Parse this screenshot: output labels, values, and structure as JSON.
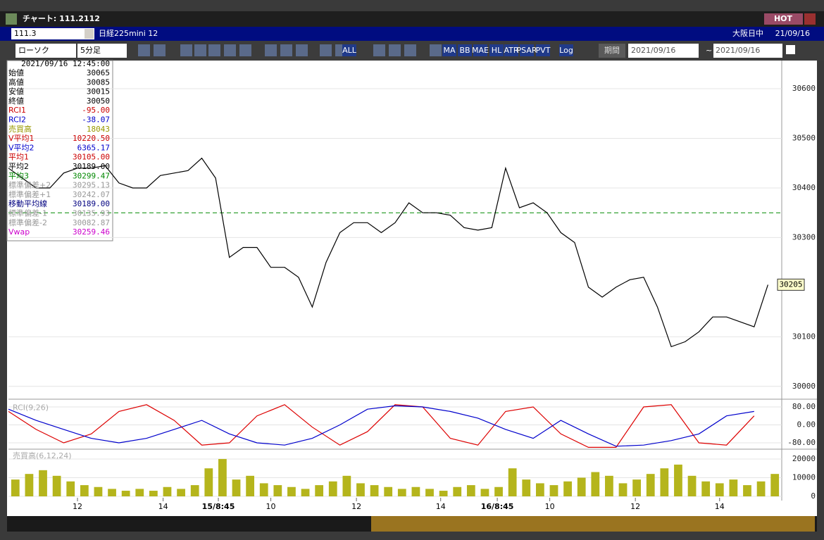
{
  "window": {
    "title": "チャート: 111.2112",
    "hot": "HOT"
  },
  "header": {
    "symbol_code": "111.3",
    "symbol_name": "日経225mini 12",
    "market": "大阪日中",
    "date": "21/09/16"
  },
  "toolbar": {
    "chart_type": "ローソク",
    "interval": "5分足",
    "buttons": [
      "ALL",
      "MA",
      "BB",
      "MAE",
      "HL",
      "ATR",
      "PSAR",
      "PVT",
      "Log"
    ],
    "period": "期間",
    "from": "2021/09/16",
    "separator": "~",
    "to": "2021/09/16"
  },
  "info_panel": {
    "timestamp": "2021/09/16  12:45:00",
    "rows": [
      {
        "label": "始値",
        "value": "30065",
        "color": "#000000"
      },
      {
        "label": "高値",
        "value": "30085",
        "color": "#000000"
      },
      {
        "label": "安値",
        "value": "30015",
        "color": "#000000"
      },
      {
        "label": "終値",
        "value": "30050",
        "color": "#000000"
      },
      {
        "label": "RCI1",
        "value": "-95.00",
        "color": "#cc0000"
      },
      {
        "label": "RCI2",
        "value": "-38.07",
        "color": "#0000cc"
      },
      {
        "label": "売買高",
        "value": "18043",
        "color": "#999900"
      },
      {
        "label": "V平均1",
        "value": "10220.50",
        "color": "#cc0000"
      },
      {
        "label": "V平均2",
        "value": "6365.17",
        "color": "#0000cc"
      },
      {
        "label": "平均1",
        "value": "30105.00",
        "color": "#cc0000"
      },
      {
        "label": "平均2",
        "value": "30189.00",
        "color": "#000000"
      },
      {
        "label": "平均3",
        "value": "30299.47",
        "color": "#008800"
      },
      {
        "label": "標準偏差+2",
        "value": "30295.13",
        "color": "#999999"
      },
      {
        "label": "標準偏差+1",
        "value": "30242.07",
        "color": "#999999"
      },
      {
        "label": "移動平均線",
        "value": "30189.00",
        "color": "#000080"
      },
      {
        "label": "標準偏差-1",
        "value": "30135.93",
        "color": "#999999"
      },
      {
        "label": "標準偏差-2",
        "value": "30082.87",
        "color": "#999999"
      },
      {
        "label": "Vwap",
        "value": "30259.46",
        "color": "#cc00cc"
      }
    ]
  },
  "chart_data": [
    {
      "type": "line",
      "color": "#000000",
      "values": [
        30440,
        30420,
        30400,
        30400,
        30430,
        30440,
        30440,
        30445,
        30410,
        30400,
        30400,
        30425,
        30430,
        30435,
        30460,
        30420,
        30260,
        30280,
        30280,
        30240,
        30240,
        30220,
        30160,
        30250,
        30310,
        30330,
        30330,
        30310,
        30330,
        30370,
        30350,
        30350,
        30345,
        30320,
        30315,
        30320,
        30440,
        30360,
        30370,
        30350,
        30310,
        30290,
        30200,
        30180,
        30200,
        30215,
        30220,
        30160,
        30080,
        30090,
        30110,
        30140,
        30140,
        30130,
        30120,
        30205
      ],
      "xlim": [
        0,
        56
      ],
      "ylim": [
        29977,
        30654
      ],
      "yticks": [
        30000,
        30100,
        30300,
        30400,
        30500,
        30600
      ],
      "hline": 30350,
      "hline_color": "#008800"
    },
    {
      "type": "line",
      "title": "RCI(9,26)",
      "x": [
        0,
        2,
        4,
        6,
        8,
        10,
        12,
        14,
        16,
        18,
        20,
        22,
        24,
        26,
        28,
        30,
        32,
        34,
        36,
        38,
        40,
        42,
        44,
        46,
        48,
        50,
        52,
        54
      ],
      "series": [
        {
          "color": "#dd0000",
          "values": [
            60,
            -20,
            -80,
            -40,
            60,
            90,
            20,
            -90,
            -80,
            40,
            90,
            -10,
            -90,
            -30,
            90,
            80,
            -60,
            -90,
            60,
            80,
            -40,
            -100,
            -100,
            80,
            90,
            -80,
            -90,
            40
          ]
        },
        {
          "color": "#0000cc",
          "values": [
            70,
            20,
            -20,
            -60,
            -80,
            -60,
            -20,
            20,
            -40,
            -80,
            -90,
            -60,
            0,
            70,
            85,
            80,
            60,
            30,
            -20,
            -60,
            20,
            -40,
            -95,
            -90,
            -70,
            -40,
            40,
            60
          ]
        }
      ],
      "xlim": [
        0,
        56
      ],
      "ylim": [
        -100,
        100
      ],
      "yticks": [
        {
          "value": 80,
          "label": "80.00"
        },
        {
          "value": 0,
          "label": "0.00"
        },
        {
          "value": -80,
          "label": "-80.00"
        }
      ]
    },
    {
      "type": "bar",
      "title": "売買高(6,12,24)",
      "color": "#b5b51c",
      "values": [
        9000,
        12000,
        14000,
        11000,
        8000,
        6000,
        5000,
        4000,
        3000,
        4000,
        3000,
        5000,
        4000,
        6000,
        15000,
        20000,
        9000,
        11000,
        7000,
        6000,
        5000,
        4000,
        6000,
        8000,
        11000,
        7000,
        6000,
        5000,
        4000,
        5000,
        4000,
        3000,
        5000,
        6000,
        4000,
        5000,
        15000,
        9000,
        7000,
        6000,
        8000,
        10000,
        13000,
        11000,
        7000,
        9000,
        12000,
        15000,
        17000,
        11000,
        8000,
        7000,
        9000,
        6000,
        8000,
        12000
      ],
      "xlim": [
        0,
        56
      ],
      "ylim": [
        0,
        24500
      ],
      "yticks": [
        0,
        10000,
        20000
      ],
      "xticks": [
        {
          "value": 5,
          "label": "12"
        },
        {
          "value": 11.2,
          "label": "14"
        },
        {
          "value": 15.2,
          "label": "15/8:45"
        },
        {
          "value": 19,
          "label": "10"
        },
        {
          "value": 25.2,
          "label": "12"
        },
        {
          "value": 31.3,
          "label": "14"
        },
        {
          "value": 35.4,
          "label": "16/8:45"
        },
        {
          "value": 39.2,
          "label": "10"
        },
        {
          "value": 45.4,
          "label": "12"
        },
        {
          "value": 51.5,
          "label": "14"
        }
      ]
    }
  ]
}
